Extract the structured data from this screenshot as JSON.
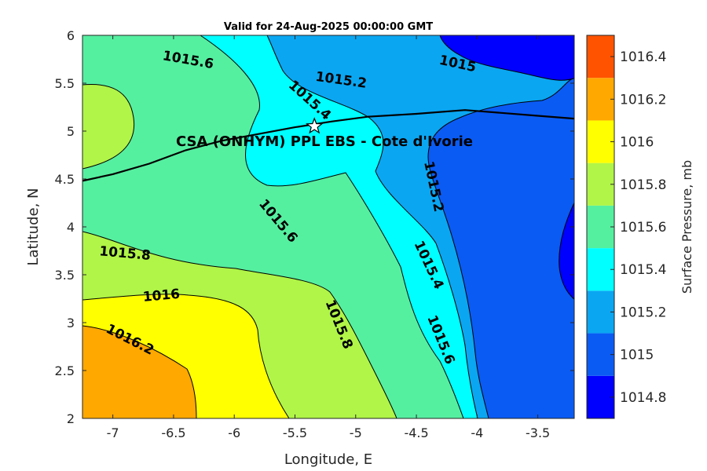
{
  "chart_data": {
    "type": "heatmap",
    "subtype": "filled-contour",
    "title": "Valid for 24-Aug-2025 00:00:00 GMT",
    "xlabel": "Longitude, E",
    "ylabel": "Latitude, N",
    "xlim": [
      -7.25,
      -3.2
    ],
    "ylim": [
      2,
      6
    ],
    "xticks": [
      "-7",
      "-6.5",
      "-6",
      "-5.5",
      "-5",
      "-4.5",
      "-4",
      "-3.5"
    ],
    "xtick_values": [
      -7,
      -6.5,
      -6,
      -5.5,
      -5,
      -4.5,
      -4,
      -3.5
    ],
    "yticks": [
      "2",
      "2.5",
      "3",
      "3.5",
      "4",
      "4.5",
      "5",
      "5.5",
      "6"
    ],
    "ytick_values": [
      2,
      2.5,
      3,
      3.5,
      4,
      4.5,
      5,
      5.5,
      6
    ],
    "colorbar": {
      "title": "Surface Pressure, mb",
      "labels": [
        "1014.8",
        "1015",
        "1015.2",
        "1015.4",
        "1015.6",
        "1015.8",
        "1016",
        "1016.2",
        "1016.4"
      ],
      "levels": [
        1014.8,
        1015.0,
        1015.2,
        1015.4,
        1015.6,
        1015.8,
        1016.0,
        1016.2,
        1016.4
      ],
      "colors": [
        "#0000ff",
        "#0a5bf4",
        "#0aa6f2",
        "#00ffff",
        "#55efa0",
        "#b0f547",
        "#ffff00",
        "#ffa800",
        "#ff5300"
      ]
    },
    "contour_labels": [
      {
        "text": "1015.6",
        "lon": -6.38,
        "lat": 5.74,
        "rotation": 10
      },
      {
        "text": "1015.2",
        "lon": -5.12,
        "lat": 5.53,
        "rotation": 8
      },
      {
        "text": "1015",
        "lon": -4.16,
        "lat": 5.7,
        "rotation": 12
      },
      {
        "text": "1015.4",
        "lon": -5.38,
        "lat": 5.32,
        "rotation": 42
      },
      {
        "text": "1015.2",
        "lon": -4.36,
        "lat": 4.42,
        "rotation": 78
      },
      {
        "text": "1015.6",
        "lon": -5.64,
        "lat": 4.06,
        "rotation": 50
      },
      {
        "text": "1015.4",
        "lon": -4.4,
        "lat": 3.6,
        "rotation": 65
      },
      {
        "text": "1015.8",
        "lon": -6.9,
        "lat": 3.72,
        "rotation": 5
      },
      {
        "text": "1016",
        "lon": -6.6,
        "lat": 3.28,
        "rotation": -5
      },
      {
        "text": "1015.8",
        "lon": -5.14,
        "lat": 2.98,
        "rotation": 68
      },
      {
        "text": "1015.6",
        "lon": -4.3,
        "lat": 2.82,
        "rotation": 68
      },
      {
        "text": "1016.2",
        "lon": -6.86,
        "lat": 2.82,
        "rotation": 27
      }
    ],
    "site": {
      "name": "CSA (ONHYM) PPL EBS  - Cote d'Ivorie",
      "lon": -5.34,
      "lat": 5.05
    },
    "coastline": [
      [
        -7.25,
        4.48
      ],
      [
        -7.0,
        4.55
      ],
      [
        -6.7,
        4.66
      ],
      [
        -6.4,
        4.8
      ],
      [
        -6.1,
        4.9
      ],
      [
        -5.8,
        4.97
      ],
      [
        -5.5,
        5.04
      ],
      [
        -5.2,
        5.1
      ],
      [
        -4.9,
        5.15
      ],
      [
        -4.5,
        5.18
      ],
      [
        -4.1,
        5.22
      ],
      [
        -3.8,
        5.19
      ],
      [
        -3.5,
        5.16
      ],
      [
        -3.2,
        5.13
      ]
    ],
    "legend": "colorbar-right",
    "grid": false
  }
}
